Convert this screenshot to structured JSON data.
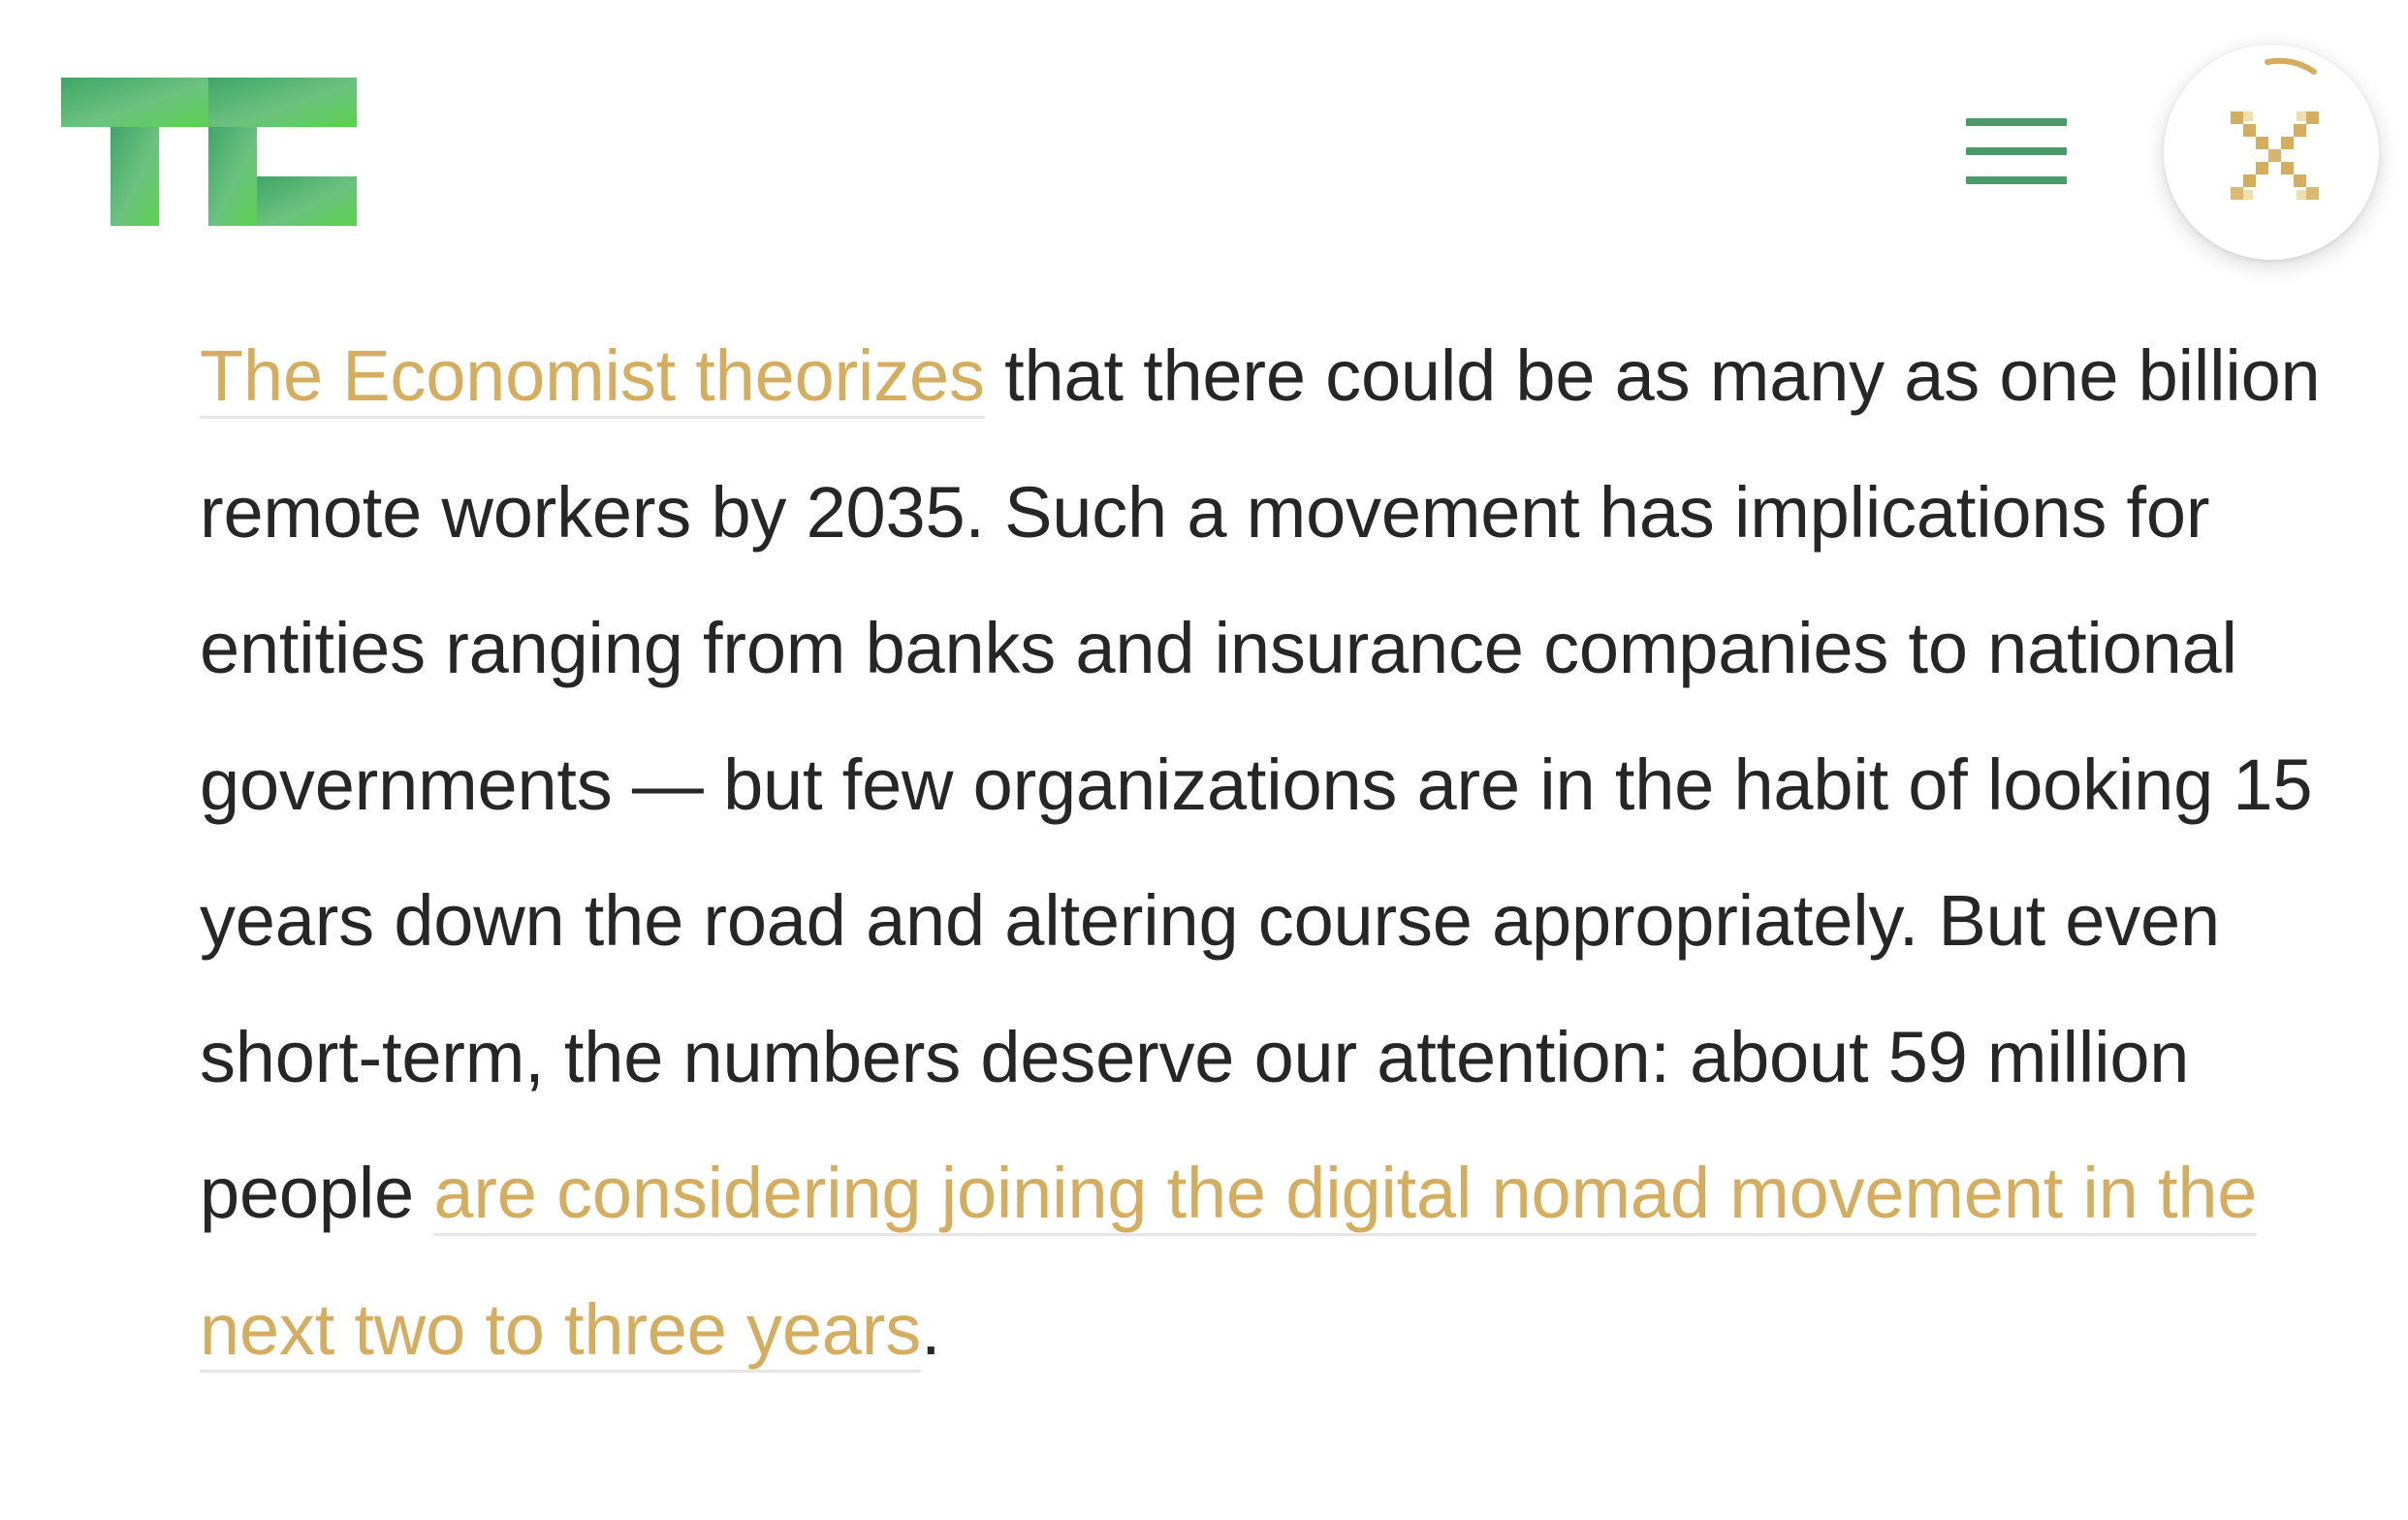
{
  "header": {
    "logo_icon": "techcrunch-logo-icon",
    "menu_icon": "hamburger-menu-icon",
    "close_icon": "close-icon",
    "brand_colors": {
      "logo_green_dark": "#3fa568",
      "logo_green_light": "#6cc27f",
      "logo_green_bright": "#5bd14e",
      "menu_green": "#4b9a69",
      "accent_gold": "#d4ad5f"
    }
  },
  "article": {
    "link1_text": "The Economist theorizes",
    "text1": " that there could be as many as one billion remote workers by 2035. Such a movement has implications for entities ranging from banks and insurance companies to national governments — but few organizations are in the habit of looking 15 years down the road and altering course appropriately. But even short-term, the numbers deserve our attention: about 59 million people ",
    "link2_text": "are considering joining the digital nomad movement in the next two to three years",
    "text2": "."
  }
}
